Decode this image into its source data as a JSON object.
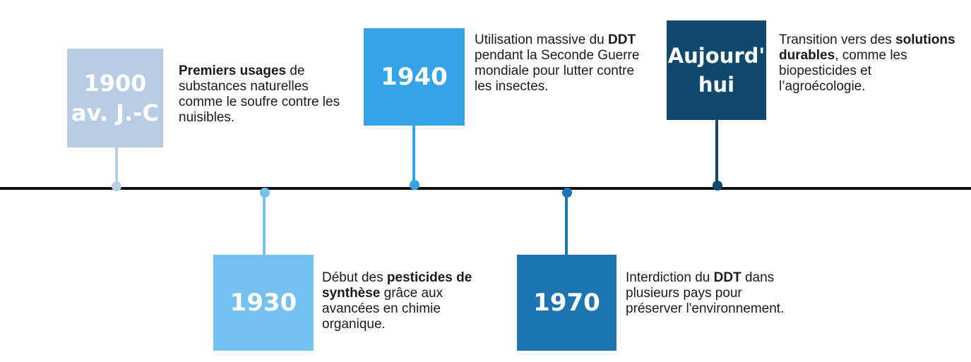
{
  "timeline": {
    "events": [
      {
        "year_line1": "1900",
        "year_line2": "av. J.-C",
        "color": "#b8cce4",
        "desc_bold": "Premiers usages",
        "desc_after": " de substances naturelles comme le soufre contre les nuisibles."
      },
      {
        "year": "1930",
        "color": "#74c0f0",
        "desc_before": "Début des ",
        "desc_bold": "pesticides de synthèse",
        "desc_after": " grâce aux avancées en chimie organique."
      },
      {
        "year": "1940",
        "color": "#33a4e6",
        "desc_before": "Utilisation massive du ",
        "desc_bold": "DDT",
        "desc_after": " pendant la Seconde Guerre mondiale pour lutter contre les insectes."
      },
      {
        "year": "1970",
        "color": "#1c74b2",
        "desc_before": "Interdiction du ",
        "desc_bold": "DDT",
        "desc_after": " dans plusieurs pays pour préserver l'environnement."
      },
      {
        "year_line1": "Aujourd'",
        "year_line2": "hui",
        "color": "#0f4a6e",
        "desc_before": "Transition vers des ",
        "desc_bold": "solutions durables",
        "desc_after": ", comme les biopesticides et l’agroécologie."
      }
    ],
    "axis_color": "#111111"
  }
}
